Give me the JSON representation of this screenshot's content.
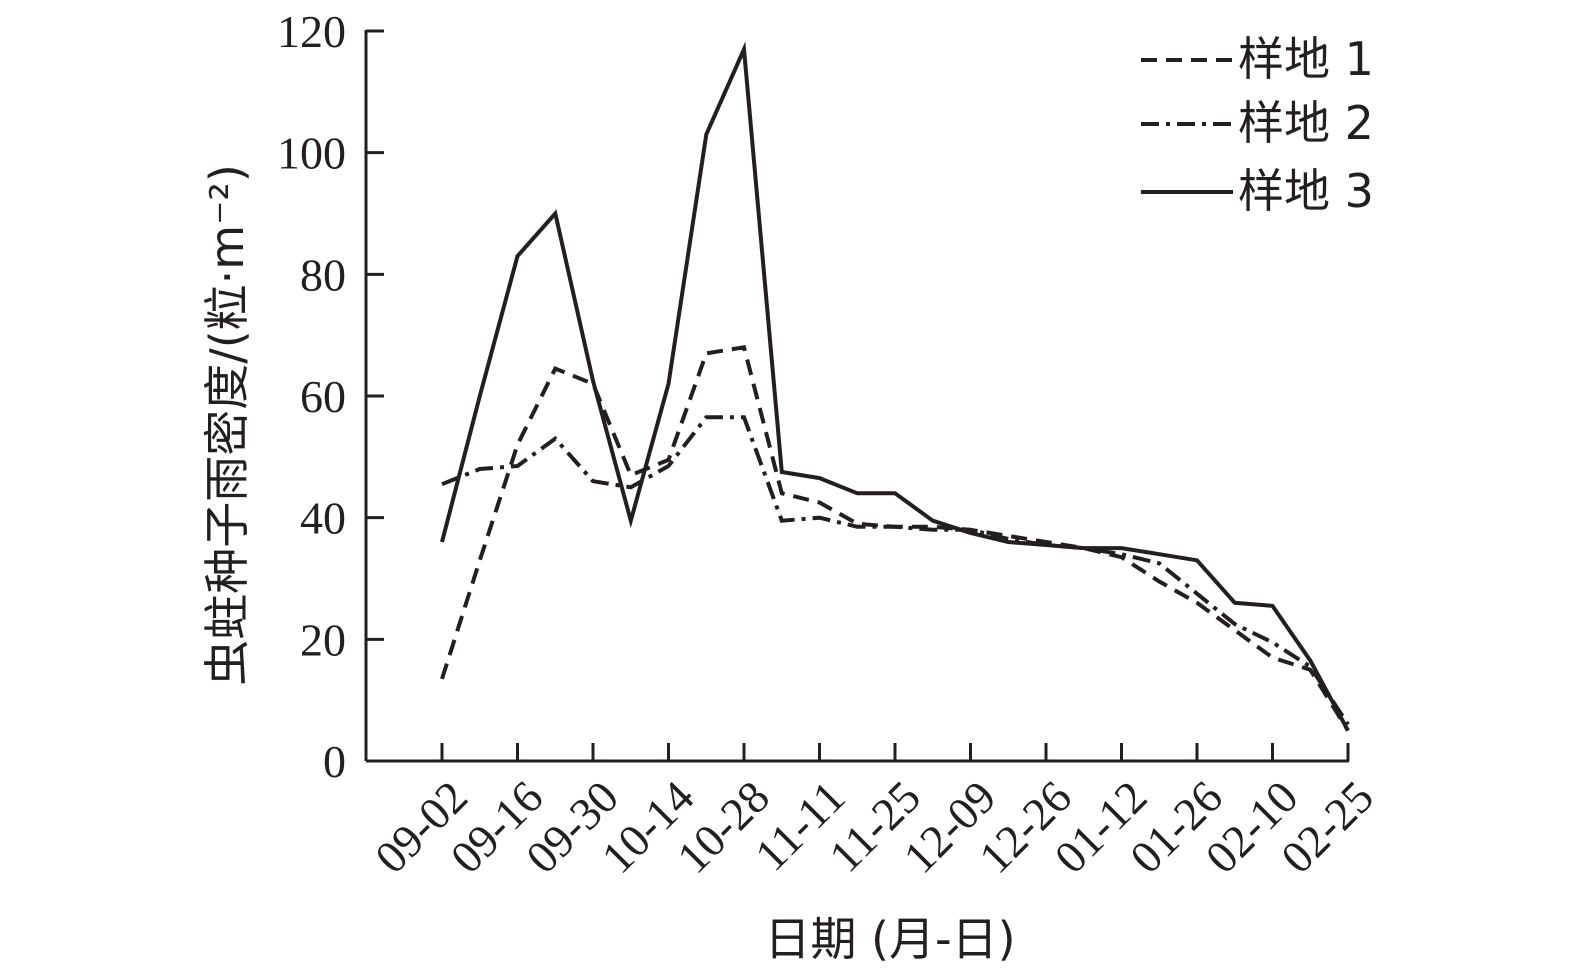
{
  "chart_data": {
    "type": "line",
    "title": "",
    "ylabel": "虫蛀种子雨密度/(粒·m⁻²)",
    "xlabel": "日期 (月-日)",
    "ylim": [
      0,
      120
    ],
    "yticks": [
      "0",
      "20",
      "40",
      "60",
      "80",
      "100",
      "120"
    ],
    "categories": [
      "09-02",
      "09-16",
      "09-30",
      "10-14",
      "10-28",
      "11-11",
      "11-25",
      "12-09",
      "12-26",
      "01-12",
      "01-26",
      "02-10",
      "02-25"
    ],
    "x": [
      "09-02",
      "09-09",
      "09-16",
      "09-23",
      "09-30",
      "10-07",
      "10-14",
      "10-21",
      "10-28",
      "11-04",
      "11-11",
      "11-18",
      "11-25",
      "12-02",
      "12-09",
      "12-17",
      "12-26",
      "01-03",
      "01-12",
      "01-19",
      "01-26",
      "02-03",
      "02-10",
      "02-17",
      "02-25"
    ],
    "series": [
      {
        "name": "样地 1",
        "style": "dashed",
        "values": [
          13.5,
          33,
          52,
          64.5,
          62,
          47,
          49.5,
          67,
          68,
          44,
          42.5,
          39,
          38.5,
          38.5,
          38,
          37,
          36,
          35,
          33.5,
          29.5,
          26,
          21.5,
          17,
          15,
          5
        ]
      },
      {
        "name": "样地 2",
        "style": "dash-dot",
        "values": [
          45.5,
          48,
          48.5,
          53,
          46,
          45,
          48.5,
          56.5,
          56.5,
          39.5,
          40,
          38.5,
          38.5,
          38,
          38,
          36.5,
          35.5,
          35,
          34,
          32.5,
          27.5,
          22.5,
          19.5,
          15.5,
          6
        ]
      },
      {
        "name": "样地 3",
        "style": "solid",
        "values": [
          36,
          60,
          83,
          90,
          62.5,
          39.5,
          62,
          103,
          117,
          47.5,
          46.5,
          44,
          44,
          39.5,
          37.5,
          36,
          35.5,
          35,
          35,
          34,
          33,
          26,
          25.5,
          16.5,
          5
        ]
      }
    ],
    "legend_position": "top-right",
    "grid": false
  }
}
